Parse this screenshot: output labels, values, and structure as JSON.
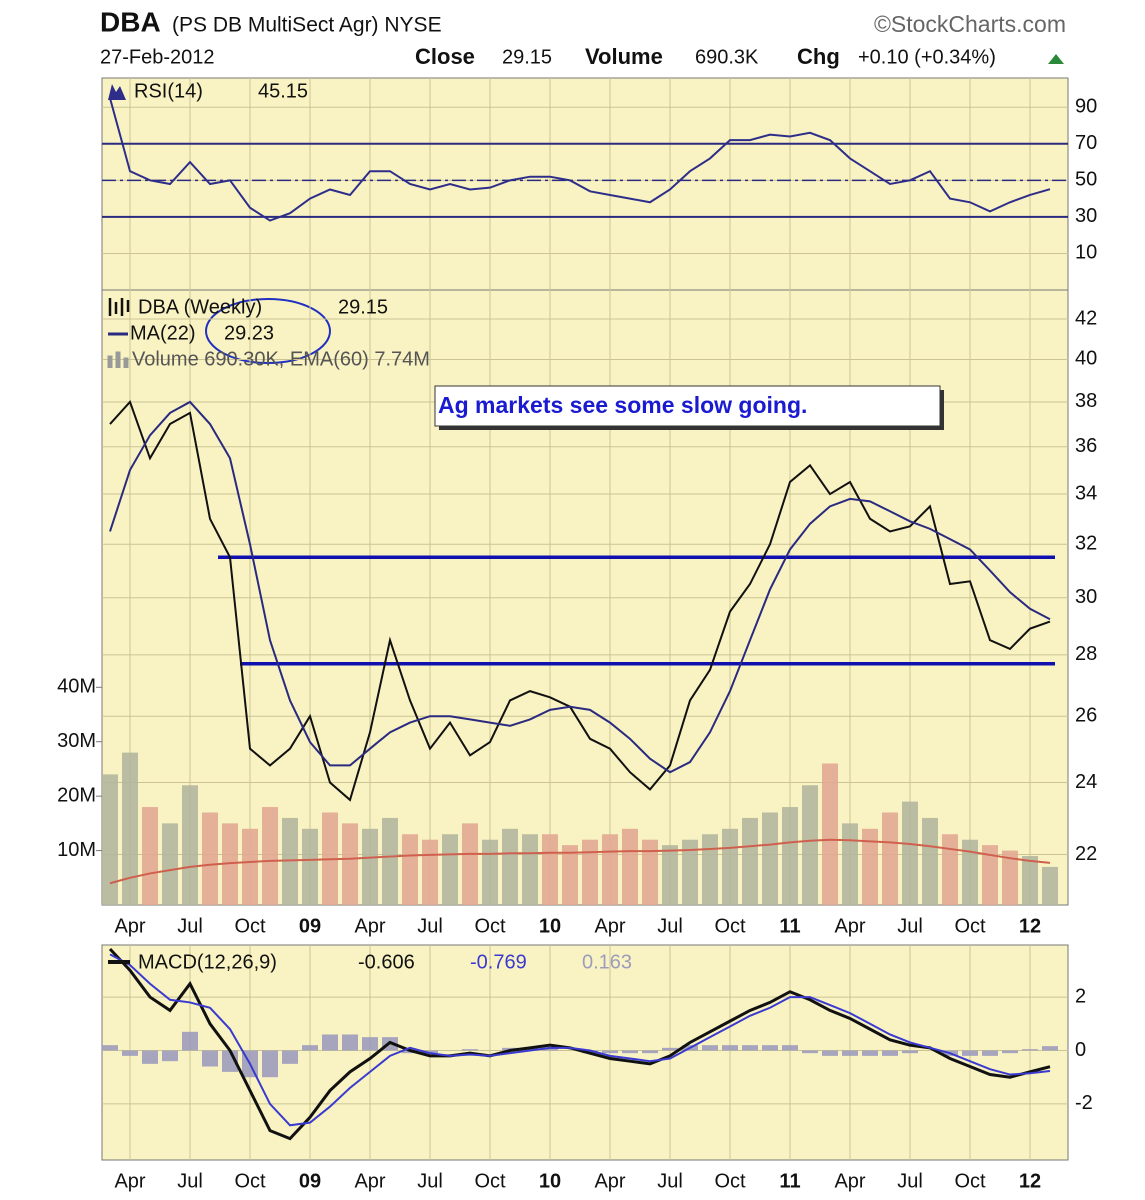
{
  "header": {
    "symbol": "DBA",
    "description": "(PS DB MultiSect  Agr) NYSE",
    "source": "©StockCharts.com",
    "date": "27-Feb-2012",
    "close_label": "Close",
    "close": 29.15,
    "volume_label": "Volume",
    "volume": "690.3K",
    "chg_label": "Chg",
    "chg": "+0.10 (+0.34%)"
  },
  "chart_data": [
    {
      "type": "line",
      "ylim": [
        -10,
        106
      ],
      "yticks": [
        10,
        30,
        50,
        70,
        90
      ],
      "grid": true,
      "reference_lines": [
        70,
        30
      ],
      "dashed_lines": [
        50
      ],
      "series": [
        {
          "name": "RSI(14)",
          "style": "line",
          "color": "#2e2e8a",
          "values": [
            95,
            55,
            50,
            48,
            60,
            48,
            50,
            35,
            28,
            32,
            40,
            45,
            42,
            55,
            55,
            48,
            45,
            48,
            45,
            46,
            50,
            52,
            52,
            50,
            44,
            42,
            40,
            38,
            45,
            55,
            62,
            72,
            72,
            75,
            74,
            76,
            72,
            62,
            55,
            48,
            50,
            55,
            40,
            38,
            33,
            38,
            42,
            45.15
          ]
        }
      ]
    },
    {
      "type": "line",
      "log_scale": true,
      "ylim": [
        20.7,
        43.5
      ],
      "yticks": [
        22,
        24,
        26,
        28,
        30,
        32,
        34,
        36,
        38,
        40,
        42
      ],
      "grid": true,
      "annotation": "Ag markets see some slow going.",
      "support_lines": [
        31.5,
        27.7
      ],
      "support_color": "#1010b0",
      "categories": [
        null,
        "Apr",
        null,
        null,
        "Jul",
        null,
        null,
        "Oct",
        null,
        null,
        "09",
        null,
        null,
        "Apr",
        null,
        null,
        "Jul",
        null,
        null,
        "Oct",
        null,
        null,
        "10",
        null,
        null,
        "Apr",
        null,
        null,
        "Jul",
        null,
        null,
        "Oct",
        null,
        null,
        "11",
        null,
        null,
        "Apr",
        null,
        null,
        "Jul",
        null,
        null,
        "Oct",
        null,
        null,
        "12",
        null
      ],
      "series": [
        {
          "name": "DBA (Weekly)",
          "style": "line",
          "color": "#111111",
          "values": [
            37,
            38,
            35.5,
            37,
            37.5,
            33,
            31.5,
            25,
            24.5,
            25,
            26,
            24,
            23.5,
            25.5,
            28.5,
            26.5,
            25,
            25.8,
            24.8,
            25.2,
            26.5,
            26.8,
            26.6,
            26.3,
            25.3,
            25.0,
            24.3,
            23.8,
            24.5,
            26.5,
            27.5,
            29.5,
            30.5,
            32,
            34.5,
            35.2,
            34,
            34.5,
            33,
            32.5,
            32.7,
            33.5,
            30.5,
            30.6,
            28.5,
            28.2,
            28.9,
            29.15
          ]
        },
        {
          "name": "MA(22)",
          "style": "line",
          "color": "#2a2a80",
          "values": [
            32.5,
            35,
            36.5,
            37.5,
            38,
            37,
            35.5,
            32,
            28.5,
            26.5,
            25.2,
            24.5,
            24.5,
            25,
            25.5,
            25.8,
            26,
            26,
            25.9,
            25.8,
            25.7,
            25.9,
            26.2,
            26.3,
            26.2,
            25.8,
            25.3,
            24.7,
            24.3,
            24.6,
            25.5,
            26.8,
            28.5,
            30.3,
            31.8,
            32.8,
            33.5,
            33.8,
            33.7,
            33.3,
            32.9,
            32.6,
            32.2,
            31.8,
            31,
            30.2,
            29.6,
            29.23
          ]
        }
      ]
    },
    {
      "type": "bar",
      "title": "Volume 690.30K, EMA(60) 7.74M",
      "ylim": [
        0,
        113
      ],
      "yticks": [
        {
          "value": 10,
          "label": "10M"
        },
        {
          "value": 20,
          "label": "20M"
        },
        {
          "value": 30,
          "label": "30M"
        },
        {
          "value": 40,
          "label": "40M"
        }
      ],
      "series": [
        {
          "style": "bar",
          "color": "#b4b79f",
          "down_color": "#e2a893",
          "values": [
            24,
            28,
            18,
            15,
            22,
            17,
            15,
            14,
            18,
            16,
            14,
            17,
            15,
            14,
            16,
            13,
            12,
            13,
            15,
            12,
            14,
            13,
            13,
            11,
            12,
            13,
            14,
            12,
            11,
            12,
            13,
            14,
            16,
            17,
            18,
            22,
            26,
            15,
            14,
            17,
            19,
            16,
            13,
            12,
            11,
            10,
            9,
            7
          ]
        },
        {
          "style": "line",
          "color": "#d0604e",
          "values": [
            4,
            5,
            5.8,
            6.4,
            7,
            7.4,
            7.7,
            7.9,
            8.1,
            8.2,
            8.3,
            8.4,
            8.5,
            8.7,
            8.9,
            9.1,
            9.2,
            9.3,
            9.4,
            9.4,
            9.5,
            9.5,
            9.6,
            9.6,
            9.7,
            9.8,
            9.9,
            9.9,
            10,
            10.1,
            10.3,
            10.5,
            10.8,
            11.1,
            11.5,
            11.8,
            12,
            11.9,
            11.7,
            11.5,
            11.2,
            10.8,
            10.3,
            9.8,
            9.2,
            8.6,
            8.1,
            7.74
          ]
        }
      ]
    },
    {
      "type": "line",
      "ylim": [
        -4.1,
        3.95
      ],
      "yticks": [
        -2,
        0,
        2
      ],
      "grid": true,
      "categories": [
        null,
        "Apr",
        null,
        null,
        "Jul",
        null,
        null,
        "Oct",
        null,
        null,
        "09",
        null,
        null,
        "Apr",
        null,
        null,
        "Jul",
        null,
        null,
        "Oct",
        null,
        null,
        "10",
        null,
        null,
        "Apr",
        null,
        null,
        "Jul",
        null,
        null,
        "Oct",
        null,
        null,
        "11",
        null,
        null,
        "Apr",
        null,
        null,
        "Jul",
        null,
        null,
        "Oct",
        null,
        null,
        "12",
        null
      ],
      "series": [
        {
          "style": "bar",
          "color": "#9c9cbc",
          "values": [
            0.2,
            -0.2,
            -0.5,
            -0.4,
            0.7,
            -0.6,
            -0.8,
            -1,
            -1,
            -0.5,
            0.2,
            0.6,
            0.6,
            0.5,
            0.5,
            -0.1,
            -0.1,
            0,
            0.05,
            0,
            0.1,
            0.1,
            0.1,
            0,
            -0.1,
            -0.1,
            -0.1,
            -0.1,
            0.1,
            0.2,
            0.2,
            0.2,
            0.2,
            0.2,
            0.2,
            -0.1,
            -0.2,
            -0.2,
            -0.2,
            -0.2,
            -0.1,
            0,
            -0.2,
            -0.2,
            -0.2,
            -0.1,
            0.05,
            0.163
          ]
        },
        {
          "name": "MACD(12,26,9)",
          "style": "line",
          "color": "#111111",
          "values": [
            3.8,
            3,
            2,
            1.5,
            2.5,
            1,
            0,
            -1.5,
            -3,
            -3.3,
            -2.5,
            -1.5,
            -0.8,
            -0.3,
            0.3,
            0,
            -0.2,
            -0.2,
            -0.1,
            -0.2,
            0,
            0.1,
            0.2,
            0.1,
            -0.1,
            -0.3,
            -0.4,
            -0.5,
            -0.2,
            0.3,
            0.7,
            1.1,
            1.5,
            1.8,
            2.2,
            1.9,
            1.5,
            1.2,
            0.8,
            0.4,
            0.2,
            0.1,
            -0.3,
            -0.6,
            -0.9,
            -1.0,
            -0.8,
            -0.606
          ]
        },
        {
          "style": "line",
          "color": "#3a3ad0",
          "values": [
            3.6,
            3.2,
            2.5,
            1.9,
            1.8,
            1.6,
            0.8,
            -0.5,
            -2,
            -2.8,
            -2.7,
            -2.1,
            -1.4,
            -0.8,
            -0.2,
            0.1,
            -0.1,
            -0.2,
            -0.15,
            -0.2,
            -0.1,
            0,
            0.1,
            0.1,
            0,
            -0.2,
            -0.3,
            -0.4,
            -0.3,
            0.1,
            0.5,
            0.9,
            1.3,
            1.6,
            2.0,
            2.0,
            1.7,
            1.4,
            1.0,
            0.6,
            0.3,
            0.1,
            -0.1,
            -0.4,
            -0.7,
            -0.9,
            -0.85,
            -0.769
          ]
        }
      ]
    }
  ]
}
